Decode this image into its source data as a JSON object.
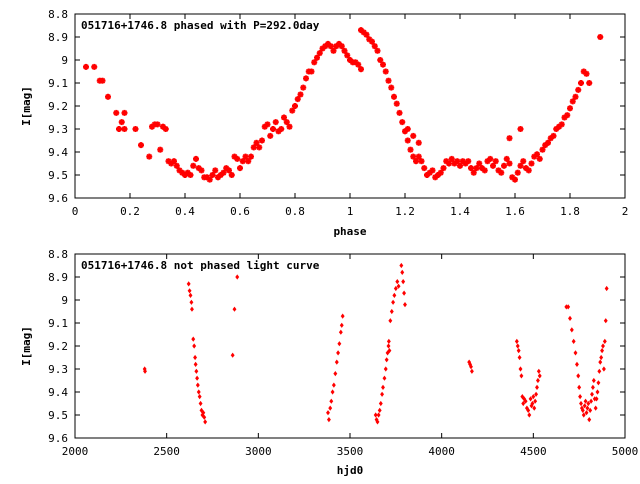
{
  "chart_data": [
    {
      "type": "scatter",
      "title": "051716+1746.8 phased with P=292.0day",
      "xlabel": "phase",
      "ylabel": "I[mag]",
      "xlim": [
        0,
        2
      ],
      "ylim": [
        8.8,
        9.6
      ],
      "y_inverted": true,
      "grid": false,
      "legend": "none",
      "marker": "cross",
      "color": "#ff0000",
      "xticks": [
        "0",
        "0.2",
        "0.4",
        "0.6",
        "0.8",
        "1",
        "1.2",
        "1.4",
        "1.6",
        "1.8",
        "2"
      ],
      "yticks": [
        "8.8",
        "8.9",
        "9",
        "9.1",
        "9.2",
        "9.3",
        "9.4",
        "9.5",
        "9.6"
      ],
      "points": [
        [
          0.04,
          9.03
        ],
        [
          0.07,
          9.03
        ],
        [
          0.09,
          9.09
        ],
        [
          0.1,
          9.09
        ],
        [
          0.12,
          9.16
        ],
        [
          0.15,
          9.23
        ],
        [
          0.16,
          9.3
        ],
        [
          0.17,
          9.27
        ],
        [
          0.18,
          9.23
        ],
        [
          0.18,
          9.3
        ],
        [
          0.22,
          9.3
        ],
        [
          0.24,
          9.37
        ],
        [
          0.27,
          9.42
        ],
        [
          0.28,
          9.29
        ],
        [
          0.29,
          9.28
        ],
        [
          0.3,
          9.28
        ],
        [
          0.31,
          9.39
        ],
        [
          0.32,
          9.29
        ],
        [
          0.33,
          9.3
        ],
        [
          0.34,
          9.44
        ],
        [
          0.35,
          9.45
        ],
        [
          0.36,
          9.44
        ],
        [
          0.37,
          9.46
        ],
        [
          0.38,
          9.48
        ],
        [
          0.39,
          9.49
        ],
        [
          0.4,
          9.5
        ],
        [
          0.41,
          9.49
        ],
        [
          0.42,
          9.5
        ],
        [
          0.43,
          9.46
        ],
        [
          0.44,
          9.43
        ],
        [
          0.45,
          9.47
        ],
        [
          0.46,
          9.48
        ],
        [
          0.47,
          9.51
        ],
        [
          0.48,
          9.51
        ],
        [
          0.49,
          9.52
        ],
        [
          0.5,
          9.5
        ],
        [
          0.51,
          9.48
        ],
        [
          0.52,
          9.51
        ],
        [
          0.53,
          9.5
        ],
        [
          0.54,
          9.49
        ],
        [
          0.55,
          9.47
        ],
        [
          0.56,
          9.48
        ],
        [
          0.57,
          9.5
        ],
        [
          0.58,
          9.42
        ],
        [
          0.59,
          9.43
        ],
        [
          0.6,
          9.47
        ],
        [
          0.61,
          9.44
        ],
        [
          0.62,
          9.42
        ],
        [
          0.63,
          9.44
        ],
        [
          0.64,
          9.42
        ],
        [
          0.65,
          9.38
        ],
        [
          0.66,
          9.36
        ],
        [
          0.67,
          9.38
        ],
        [
          0.68,
          9.35
        ],
        [
          0.69,
          9.29
        ],
        [
          0.7,
          9.28
        ],
        [
          0.71,
          9.33
        ],
        [
          0.72,
          9.3
        ],
        [
          0.73,
          9.27
        ],
        [
          0.74,
          9.31
        ],
        [
          0.75,
          9.3
        ],
        [
          0.76,
          9.25
        ],
        [
          0.77,
          9.27
        ],
        [
          0.78,
          9.29
        ],
        [
          0.79,
          9.22
        ],
        [
          0.8,
          9.2
        ],
        [
          0.81,
          9.17
        ],
        [
          0.82,
          9.15
        ],
        [
          0.83,
          9.12
        ],
        [
          0.84,
          9.08
        ],
        [
          0.85,
          9.05
        ],
        [
          0.86,
          9.05
        ],
        [
          0.87,
          9.01
        ],
        [
          0.88,
          8.99
        ],
        [
          0.89,
          8.97
        ],
        [
          0.9,
          8.95
        ],
        [
          0.91,
          8.94
        ],
        [
          0.92,
          8.93
        ],
        [
          0.93,
          8.94
        ],
        [
          0.94,
          8.96
        ],
        [
          0.95,
          8.94
        ],
        [
          0.96,
          8.93
        ],
        [
          0.97,
          8.94
        ],
        [
          0.98,
          8.96
        ],
        [
          0.99,
          8.98
        ],
        [
          1.0,
          9.0
        ],
        [
          1.01,
          9.01
        ],
        [
          1.02,
          9.01
        ],
        [
          1.03,
          9.02
        ],
        [
          1.04,
          9.04
        ],
        [
          1.04,
          8.87
        ],
        [
          1.05,
          8.88
        ],
        [
          1.06,
          8.89
        ],
        [
          1.07,
          8.91
        ],
        [
          1.08,
          8.92
        ],
        [
          1.09,
          8.94
        ],
        [
          1.1,
          8.96
        ],
        [
          1.11,
          9.0
        ],
        [
          1.12,
          9.02
        ],
        [
          1.13,
          9.05
        ],
        [
          1.14,
          9.09
        ],
        [
          1.15,
          9.12
        ],
        [
          1.16,
          9.16
        ],
        [
          1.17,
          9.19
        ],
        [
          1.18,
          9.23
        ],
        [
          1.19,
          9.27
        ],
        [
          1.2,
          9.31
        ],
        [
          1.21,
          9.35
        ],
        [
          1.22,
          9.39
        ],
        [
          1.23,
          9.42
        ],
        [
          1.24,
          9.44
        ],
        [
          1.25,
          9.42
        ],
        [
          1.26,
          9.44
        ],
        [
          1.27,
          9.47
        ],
        [
          1.28,
          9.5
        ],
        [
          1.29,
          9.49
        ],
        [
          1.3,
          9.48
        ],
        [
          1.31,
          9.51
        ],
        [
          1.32,
          9.5
        ],
        [
          1.33,
          9.49
        ],
        [
          1.34,
          9.47
        ],
        [
          1.35,
          9.44
        ],
        [
          1.36,
          9.45
        ],
        [
          1.37,
          9.43
        ],
        [
          1.38,
          9.45
        ],
        [
          1.39,
          9.44
        ],
        [
          1.4,
          9.46
        ],
        [
          1.41,
          9.44
        ],
        [
          1.42,
          9.45
        ],
        [
          1.43,
          9.44
        ],
        [
          1.44,
          9.47
        ],
        [
          1.45,
          9.49
        ],
        [
          1.46,
          9.47
        ],
        [
          1.47,
          9.45
        ],
        [
          1.48,
          9.47
        ],
        [
          1.49,
          9.48
        ],
        [
          1.5,
          9.44
        ],
        [
          1.51,
          9.43
        ],
        [
          1.52,
          9.46
        ],
        [
          1.53,
          9.44
        ],
        [
          1.54,
          9.48
        ],
        [
          1.55,
          9.49
        ],
        [
          1.56,
          9.46
        ],
        [
          1.57,
          9.43
        ],
        [
          1.58,
          9.45
        ],
        [
          1.59,
          9.51
        ],
        [
          1.6,
          9.52
        ],
        [
          1.61,
          9.49
        ],
        [
          1.62,
          9.46
        ],
        [
          1.63,
          9.44
        ],
        [
          1.64,
          9.47
        ],
        [
          1.65,
          9.48
        ],
        [
          1.66,
          9.45
        ],
        [
          1.67,
          9.42
        ],
        [
          1.68,
          9.41
        ],
        [
          1.69,
          9.43
        ],
        [
          1.7,
          9.39
        ],
        [
          1.71,
          9.37
        ],
        [
          1.72,
          9.36
        ],
        [
          1.73,
          9.34
        ],
        [
          1.74,
          9.33
        ],
        [
          1.75,
          9.3
        ],
        [
          1.76,
          9.29
        ],
        [
          1.77,
          9.28
        ],
        [
          1.78,
          9.25
        ],
        [
          1.79,
          9.24
        ],
        [
          1.8,
          9.21
        ],
        [
          1.81,
          9.18
        ],
        [
          1.82,
          9.16
        ],
        [
          1.83,
          9.13
        ],
        [
          1.84,
          9.1
        ],
        [
          1.85,
          9.05
        ],
        [
          1.86,
          9.06
        ],
        [
          1.87,
          9.1
        ],
        [
          1.91,
          8.9
        ],
        [
          1.62,
          9.3
        ],
        [
          1.58,
          9.34
        ],
        [
          1.23,
          9.33
        ],
        [
          1.21,
          9.3
        ],
        [
          1.25,
          9.36
        ]
      ]
    },
    {
      "type": "scatter",
      "title": "051716+1746.8 not phased light curve",
      "xlabel": "hjd0",
      "ylabel": "I[mag]",
      "xlim": [
        2000,
        5000
      ],
      "ylim": [
        8.8,
        9.6
      ],
      "y_inverted": true,
      "grid": false,
      "legend": "none",
      "marker": "diamond",
      "color": "#ff0000",
      "xticks": [
        "2000",
        "2500",
        "3000",
        "3500",
        "4000",
        "4500",
        "5000"
      ],
      "yticks": [
        "8.8",
        "8.9",
        "9",
        "9.1",
        "9.2",
        "9.3",
        "9.4",
        "9.5",
        "9.6"
      ],
      "points": [
        [
          2380,
          9.3
        ],
        [
          2382,
          9.31
        ],
        [
          2620,
          8.93
        ],
        [
          2625,
          8.96
        ],
        [
          2630,
          8.98
        ],
        [
          2635,
          9.01
        ],
        [
          2638,
          9.04
        ],
        [
          2645,
          9.17
        ],
        [
          2650,
          9.2
        ],
        [
          2655,
          9.25
        ],
        [
          2658,
          9.28
        ],
        [
          2662,
          9.31
        ],
        [
          2666,
          9.34
        ],
        [
          2670,
          9.37
        ],
        [
          2675,
          9.4
        ],
        [
          2680,
          9.42
        ],
        [
          2685,
          9.45
        ],
        [
          2690,
          9.48
        ],
        [
          2695,
          9.5
        ],
        [
          2700,
          9.49
        ],
        [
          2705,
          9.51
        ],
        [
          2710,
          9.53
        ],
        [
          2860,
          9.24
        ],
        [
          2870,
          9.04
        ],
        [
          2885,
          8.9
        ],
        [
          3380,
          9.49
        ],
        [
          3385,
          9.52
        ],
        [
          3392,
          9.47
        ],
        [
          3398,
          9.44
        ],
        [
          3405,
          9.4
        ],
        [
          3412,
          9.37
        ],
        [
          3420,
          9.32
        ],
        [
          3428,
          9.27
        ],
        [
          3435,
          9.23
        ],
        [
          3442,
          9.19
        ],
        [
          3450,
          9.14
        ],
        [
          3455,
          9.11
        ],
        [
          3460,
          9.07
        ],
        [
          3640,
          9.5
        ],
        [
          3645,
          9.52
        ],
        [
          3650,
          9.53
        ],
        [
          3656,
          9.5
        ],
        [
          3662,
          9.48
        ],
        [
          3668,
          9.45
        ],
        [
          3675,
          9.41
        ],
        [
          3680,
          9.38
        ],
        [
          3688,
          9.34
        ],
        [
          3695,
          9.3
        ],
        [
          3700,
          9.26
        ],
        [
          3705,
          9.23
        ],
        [
          3710,
          9.2
        ],
        [
          3712,
          9.18
        ],
        [
          3715,
          9.22
        ],
        [
          3720,
          9.09
        ],
        [
          3728,
          9.05
        ],
        [
          3735,
          9.01
        ],
        [
          3742,
          8.98
        ],
        [
          3750,
          8.95
        ],
        [
          3758,
          8.92
        ],
        [
          3765,
          8.94
        ],
        [
          3780,
          8.85
        ],
        [
          3785,
          8.88
        ],
        [
          3790,
          8.92
        ],
        [
          3795,
          8.97
        ],
        [
          3800,
          9.02
        ],
        [
          4150,
          9.27
        ],
        [
          4155,
          9.28
        ],
        [
          4160,
          9.29
        ],
        [
          4165,
          9.31
        ],
        [
          4410,
          9.18
        ],
        [
          4415,
          9.2
        ],
        [
          4420,
          9.22
        ],
        [
          4425,
          9.25
        ],
        [
          4430,
          9.3
        ],
        [
          4435,
          9.33
        ],
        [
          4440,
          9.42
        ],
        [
          4445,
          9.45
        ],
        [
          4450,
          9.43
        ],
        [
          4458,
          9.44
        ],
        [
          4465,
          9.47
        ],
        [
          4472,
          9.48
        ],
        [
          4478,
          9.5
        ],
        [
          4485,
          9.43
        ],
        [
          4490,
          9.46
        ],
        [
          4495,
          9.45
        ],
        [
          4500,
          9.42
        ],
        [
          4505,
          9.47
        ],
        [
          4510,
          9.44
        ],
        [
          4515,
          9.41
        ],
        [
          4520,
          9.38
        ],
        [
          4525,
          9.35
        ],
        [
          4530,
          9.31
        ],
        [
          4535,
          9.33
        ],
        [
          4680,
          9.03
        ],
        [
          4690,
          9.03
        ],
        [
          4700,
          9.08
        ],
        [
          4710,
          9.13
        ],
        [
          4720,
          9.18
        ],
        [
          4730,
          9.23
        ],
        [
          4738,
          9.28
        ],
        [
          4745,
          9.33
        ],
        [
          4750,
          9.38
        ],
        [
          4755,
          9.42
        ],
        [
          4760,
          9.45
        ],
        [
          4765,
          9.47
        ],
        [
          4770,
          9.48
        ],
        [
          4775,
          9.5
        ],
        [
          4780,
          9.46
        ],
        [
          4785,
          9.44
        ],
        [
          4790,
          9.49
        ],
        [
          4795,
          9.47
        ],
        [
          4800,
          9.45
        ],
        [
          4805,
          9.52
        ],
        [
          4810,
          9.48
        ],
        [
          4815,
          9.44
        ],
        [
          4820,
          9.41
        ],
        [
          4825,
          9.38
        ],
        [
          4830,
          9.35
        ],
        [
          4835,
          9.43
        ],
        [
          4840,
          9.47
        ],
        [
          4845,
          9.43
        ],
        [
          4850,
          9.4
        ],
        [
          4855,
          9.36
        ],
        [
          4860,
          9.31
        ],
        [
          4865,
          9.27
        ],
        [
          4870,
          9.25
        ],
        [
          4875,
          9.22
        ],
        [
          4880,
          9.2
        ],
        [
          4885,
          9.3
        ],
        [
          4890,
          9.18
        ],
        [
          4895,
          9.09
        ],
        [
          4900,
          8.95
        ]
      ]
    }
  ]
}
